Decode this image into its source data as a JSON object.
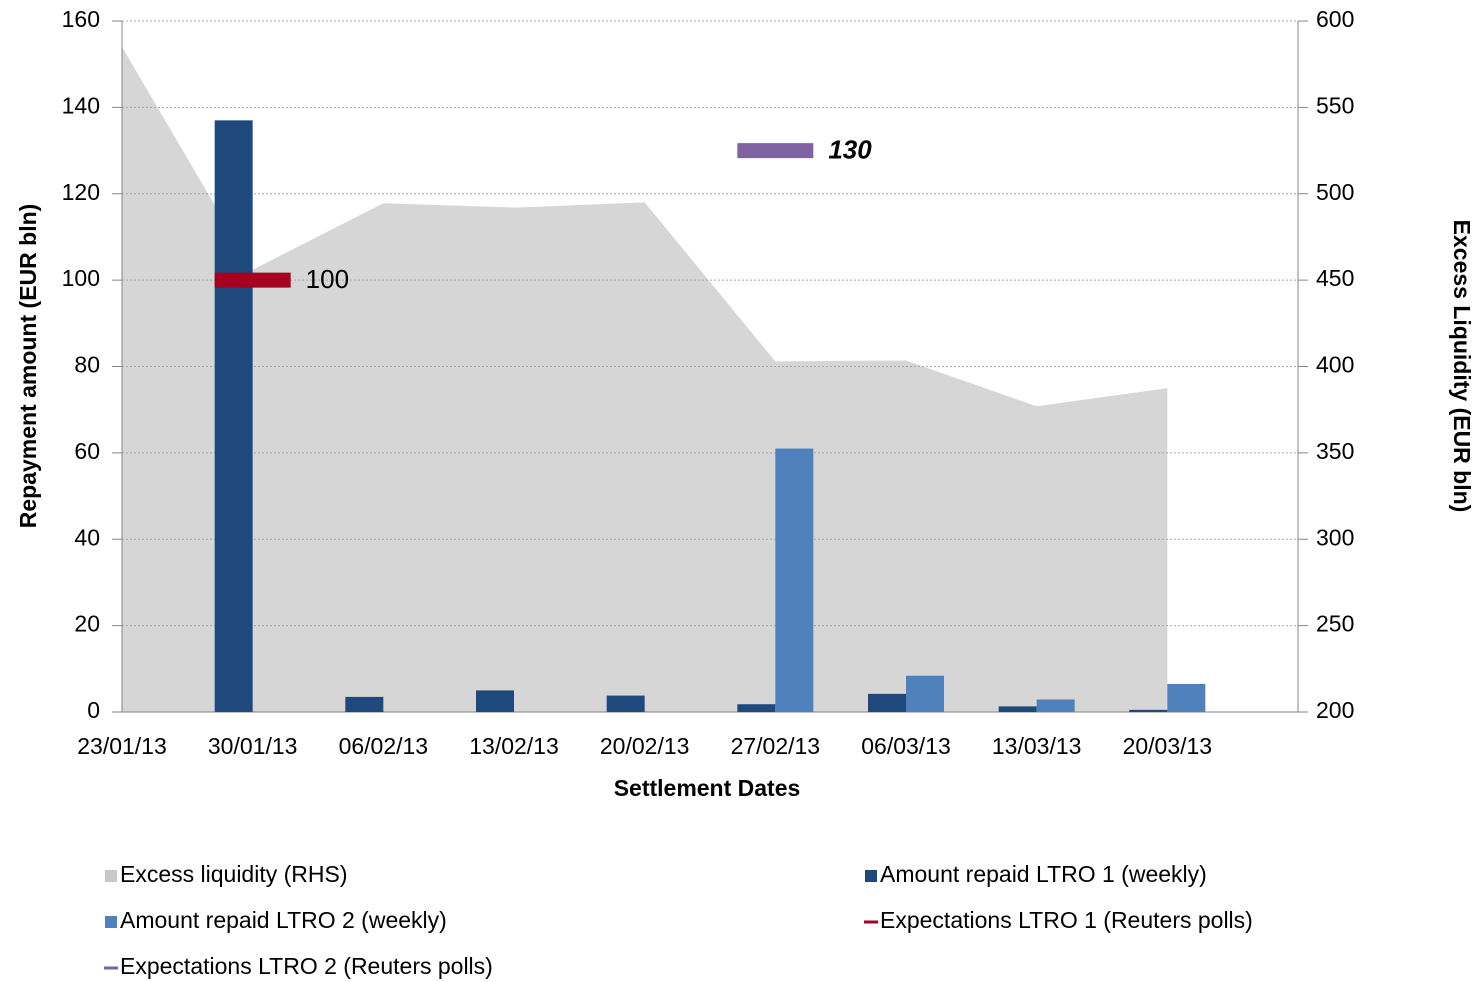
{
  "chart_data": {
    "type": "bar",
    "x_label": "Settlement Dates",
    "y_label": "Repayment amount (EUR bln)",
    "y2_label": "Excess Liquidity (EUR bln)",
    "categories": [
      "23/01/13",
      "30/01/13",
      "06/02/13",
      "13/02/13",
      "20/02/13",
      "27/02/13",
      "06/03/13",
      "13/03/13",
      "20/03/13"
    ],
    "series": [
      {
        "name": "Excess liquidity (RHS)",
        "type": "area",
        "axis": "y2",
        "color": "#d6d6d6",
        "values": [
          585,
          456,
          494.5,
          492,
          495,
          403,
          403.5,
          377,
          387.5
        ]
      },
      {
        "name": "Amount repaid LTRO 1 (weekly)",
        "type": "bar",
        "color": "#1f497d",
        "values": [
          null,
          137,
          3.5,
          5,
          3.8,
          1.8,
          4.2,
          1.3,
          0.5
        ]
      },
      {
        "name": "Amount repaid LTRO 2 (weekly)",
        "type": "bar",
        "color": "#4f81bd",
        "values": [
          null,
          null,
          null,
          null,
          null,
          61,
          8.4,
          2.9,
          6.5
        ]
      },
      {
        "name": "Expectations LTRO 1 (Reuters polls)",
        "type": "marker",
        "color": "#a50021",
        "values": [
          null,
          100,
          null,
          null,
          null,
          null,
          null,
          null,
          null
        ]
      },
      {
        "name": "Expectations LTRO 2 (Reuters polls)",
        "type": "marker",
        "color": "#8064a2",
        "values": [
          null,
          null,
          null,
          null,
          null,
          130,
          null,
          null,
          null
        ]
      }
    ],
    "ylim": [
      0,
      160
    ],
    "yticks": [
      0,
      20,
      40,
      60,
      80,
      100,
      120,
      140,
      160
    ],
    "y2lim": [
      200,
      600
    ],
    "y2ticks": [
      200,
      250,
      300,
      350,
      400,
      450,
      500,
      550,
      600
    ],
    "grid": true,
    "legend": "bottom"
  }
}
